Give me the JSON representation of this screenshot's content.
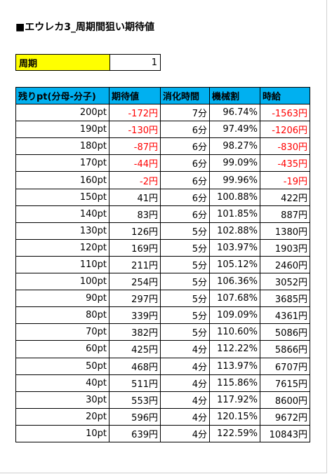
{
  "header": {
    "title": "■エウレカ3_周期間狙い期待値"
  },
  "period": {
    "label": "周期",
    "value": "1"
  },
  "table": {
    "columns": [
      "残りpt(分母-分子)",
      "期待値",
      "消化時間",
      "機械割",
      "時給"
    ],
    "rows": [
      [
        "200pt",
        "-172円",
        "7分",
        "96.74%",
        "-1563円"
      ],
      [
        "190pt",
        "-130円",
        "6分",
        "97.49%",
        "-1206円"
      ],
      [
        "180pt",
        "-87円",
        "6分",
        "98.27%",
        "-830円"
      ],
      [
        "170pt",
        "-44円",
        "6分",
        "99.09%",
        "-435円"
      ],
      [
        "160pt",
        "-2円",
        "6分",
        "99.96%",
        "-19円"
      ],
      [
        "150pt",
        "41円",
        "6分",
        "100.88%",
        "422円"
      ],
      [
        "140pt",
        "83円",
        "6分",
        "101.85%",
        "887円"
      ],
      [
        "130pt",
        "126円",
        "5分",
        "102.88%",
        "1380円"
      ],
      [
        "120pt",
        "169円",
        "5分",
        "103.97%",
        "1903円"
      ],
      [
        "110pt",
        "211円",
        "5分",
        "105.12%",
        "2460円"
      ],
      [
        "100pt",
        "254円",
        "5分",
        "106.36%",
        "3052円"
      ],
      [
        "90pt",
        "297円",
        "5分",
        "107.68%",
        "3685円"
      ],
      [
        "80pt",
        "339円",
        "5分",
        "109.09%",
        "4361円"
      ],
      [
        "70pt",
        "382円",
        "5分",
        "110.60%",
        "5086円"
      ],
      [
        "60pt",
        "425円",
        "4分",
        "112.22%",
        "5866円"
      ],
      [
        "50pt",
        "468円",
        "4分",
        "113.97%",
        "6707円"
      ],
      [
        "40pt",
        "511円",
        "4分",
        "115.86%",
        "7615円"
      ],
      [
        "30pt",
        "553円",
        "4分",
        "117.92%",
        "8600円"
      ],
      [
        "20pt",
        "596円",
        "4分",
        "120.15%",
        "9672円"
      ],
      [
        "10pt",
        "639円",
        "4分",
        "122.59%",
        "10843円"
      ]
    ]
  }
}
